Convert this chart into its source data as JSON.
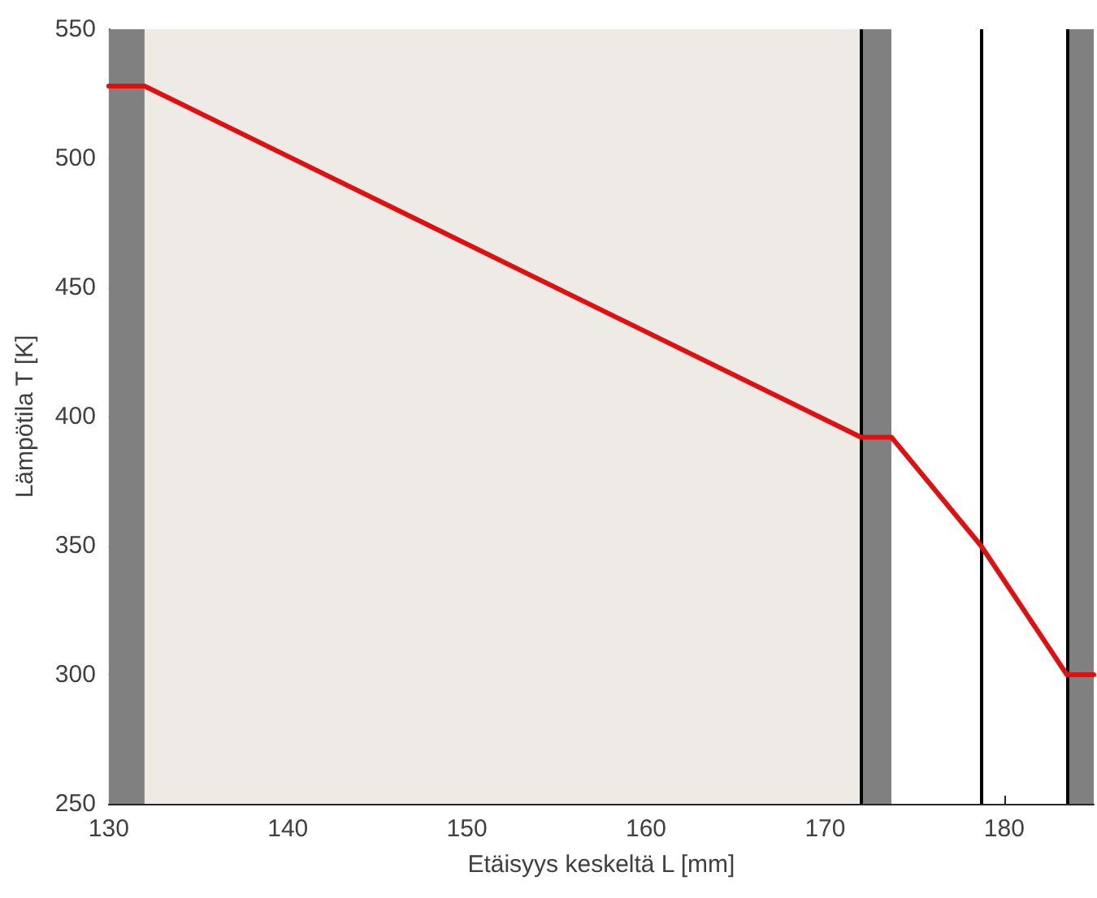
{
  "chart_data": {
    "type": "line",
    "xlabel": "Etäisyys keskeltä L [mm]",
    "ylabel": "Lämpötila T [K]",
    "x": [
      130,
      132,
      172,
      173.7,
      178.7,
      183.5,
      185
    ],
    "series": [
      {
        "color": "#e01010",
        "values": [
          528,
          528,
          392,
          392,
          350,
          300,
          300
        ]
      }
    ],
    "xlim": [
      130,
      185
    ],
    "xticks": [
      130,
      140,
      150,
      160,
      170,
      180
    ],
    "ylim": [
      250,
      550
    ],
    "yticks": [
      250,
      300,
      350,
      400,
      450,
      500,
      550
    ],
    "bands": [
      {
        "axis": "x",
        "from": 130,
        "to": 132,
        "color": "#808080"
      },
      {
        "axis": "x",
        "from": 132,
        "to": 172,
        "color": "#eeeae6"
      },
      {
        "axis": "x",
        "from": 172,
        "to": 173.7,
        "color": "#808080"
      },
      {
        "axis": "x",
        "from": 183.5,
        "to": 185,
        "color": "#808080"
      }
    ],
    "ref_lines": [
      {
        "axis": "x",
        "value": 172,
        "color": "#000000"
      },
      {
        "axis": "x",
        "value": 178.7,
        "color": "#000000"
      },
      {
        "axis": "x",
        "value": 183.5,
        "color": "#000000"
      }
    ],
    "marker": "none",
    "line_style": "solid"
  }
}
